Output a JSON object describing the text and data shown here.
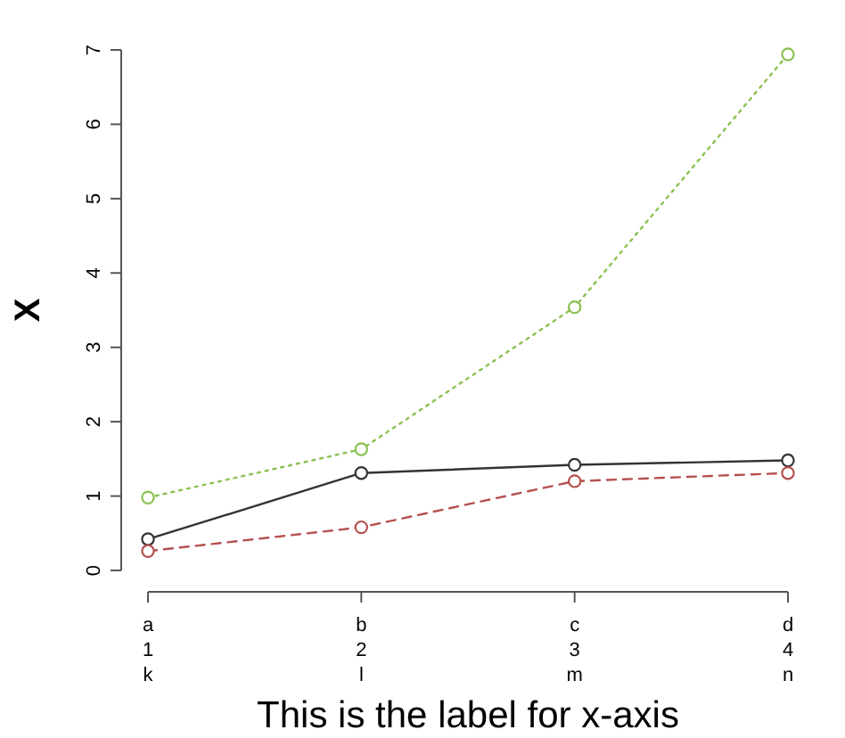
{
  "chart_data": {
    "type": "line",
    "xlabel": "This is the label for x-axis",
    "ylabel": "X",
    "categories": [
      "a\n1\nk",
      "b\n2\nl",
      "c\n3\nm",
      "d\n4\nn"
    ],
    "ylim": [
      0,
      7
    ],
    "yticks": [
      0,
      1,
      2,
      3,
      4,
      5,
      6,
      7
    ],
    "marker": "circle",
    "grid": false,
    "series": [
      {
        "color": "#333333",
        "line_style": "solid",
        "values": [
          0.42,
          1.31,
          1.42,
          1.48
        ]
      },
      {
        "color": "#b5504f",
        "line_style": "dashed",
        "values": [
          0.26,
          0.58,
          1.2,
          1.31
        ]
      },
      {
        "color": "#8cc152",
        "line_style": "dotted",
        "values": [
          0.98,
          1.63,
          3.54,
          6.94
        ]
      }
    ]
  }
}
